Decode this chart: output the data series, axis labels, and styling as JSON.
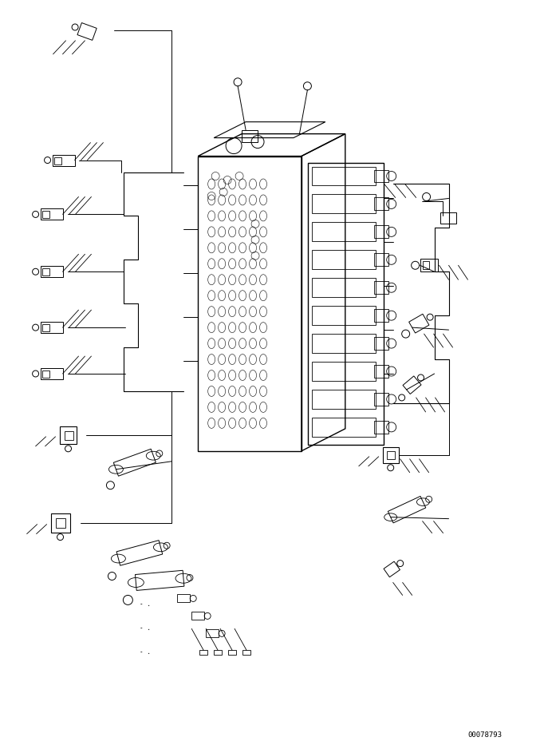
{
  "bg_color": "#ffffff",
  "line_color": "#000000",
  "fig_width": 6.82,
  "fig_height": 9.38,
  "dpi": 100,
  "serial_number": "00078793"
}
